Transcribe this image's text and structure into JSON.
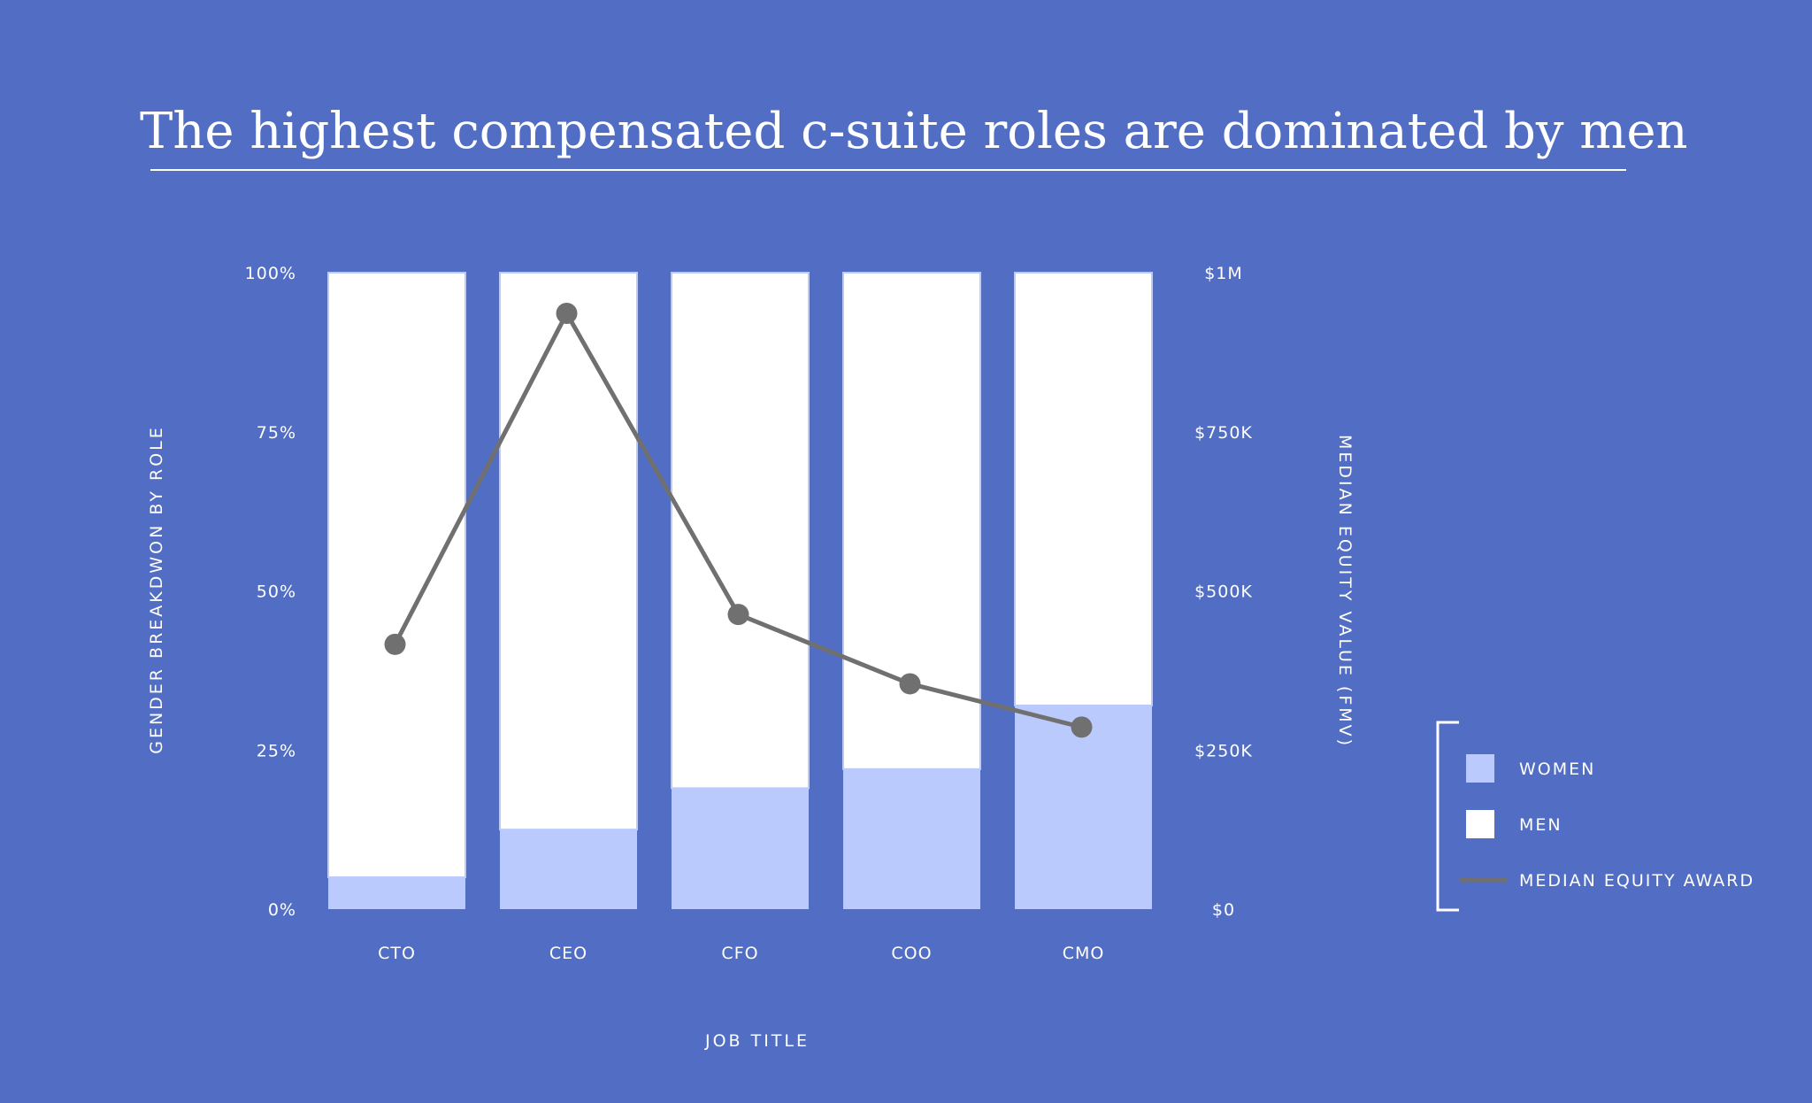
{
  "chart_data": {
    "type": "bar",
    "title": "The highest compensated c-suite roles are dominated by men",
    "xlabel": "JOB TITLE",
    "ylabel": "GENDER BREAKDWON BY ROLE",
    "y2label": "MEDIAN EQUITY VALUE (FMV)",
    "categories": [
      "CTO",
      "CEO",
      "CFO",
      "COO",
      "CMO"
    ],
    "ylim": [
      0,
      100
    ],
    "y_ticks": [
      "0%",
      "25%",
      "50%",
      "75%",
      "100%"
    ],
    "y2lim": [
      0,
      1000000
    ],
    "y2_ticks": [
      "$0",
      "$250K",
      "$500K",
      "$750K",
      "$1M"
    ],
    "stacked": true,
    "series": [
      {
        "name": "WOMEN",
        "type": "bar",
        "color": "#bacafd",
        "values": [
          5,
          12.5,
          19,
          22,
          32
        ]
      },
      {
        "name": "MEN",
        "type": "bar",
        "color": "#ffffff",
        "values": [
          95,
          87.5,
          81,
          78,
          68
        ]
      },
      {
        "name": "MEDIAN EQUITY AWARD",
        "type": "line",
        "axis": "right",
        "color": "#707070",
        "values": [
          416000,
          936000,
          463000,
          354000,
          286000
        ]
      }
    ],
    "grid": false,
    "legend_placement": "right",
    "background_color": "#526ec4"
  }
}
